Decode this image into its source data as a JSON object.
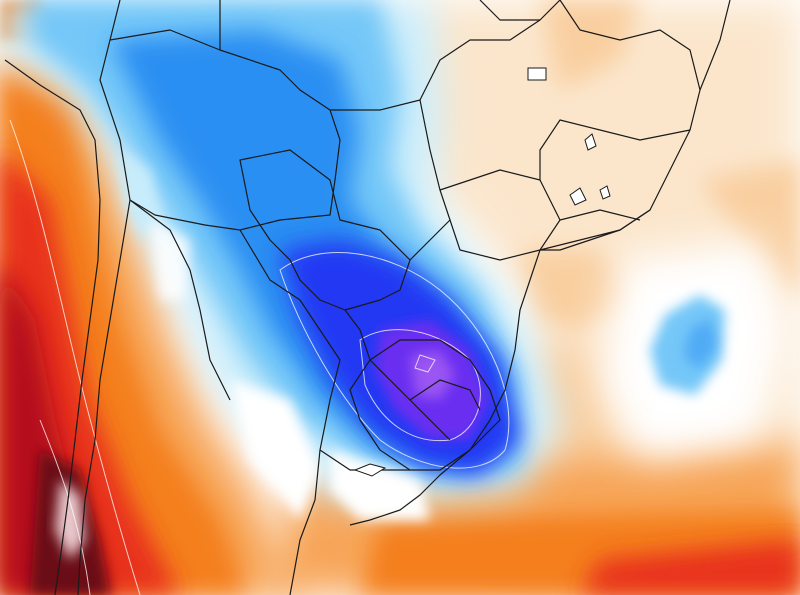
{
  "map": {
    "type": "temperature-anomaly-field",
    "region": "South America",
    "labels": [],
    "colors": {
      "background": "#ffffff",
      "cold_deepest": "#6a2ff0",
      "cold_deep": "#2337f3",
      "cold_mid": "#2a8ff2",
      "cold_light": "#74c7f8",
      "cold_pale": "#c7ecfb",
      "neutral": "#ffffff",
      "warm_pale": "#fbe6cc",
      "warm_light": "#f9cfa0",
      "warm_mid": "#f7a559",
      "warm_orange": "#f47f1b",
      "warm_red": "#e8301c",
      "warm_deep": "#b5111b",
      "warm_darkest": "#6b0a14",
      "borders": "#1a1a1a",
      "contours": "#ffffff"
    }
  }
}
